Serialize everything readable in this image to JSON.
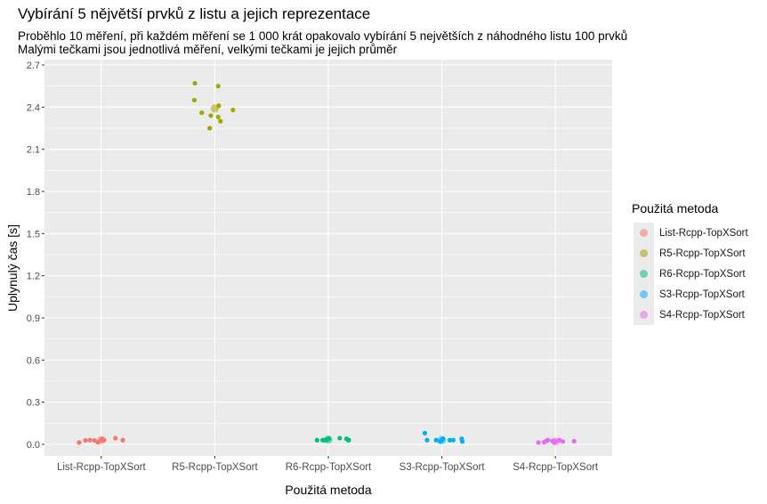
{
  "title": "Vybírání 5 nějvětší prvků z listu a jejich reprezentace",
  "subtitle_line1": "Proběhlo 10 měření, při každém měření se 1 000 krát opakovalo vybírání 5 největších z náhodného listu 100 prvků",
  "subtitle_line2": "Malými tečkami jsou jednotlivá měření, velkými tečkami je jejich průměr",
  "legend": {
    "title": "Použitá metoda",
    "items": [
      {
        "label": "List-Rcpp-TopXSort",
        "color": "#F8766D"
      },
      {
        "label": "R5-Rcpp-TopXSort",
        "color": "#A3A500"
      },
      {
        "label": "R6-Rcpp-TopXSort",
        "color": "#00BF7D"
      },
      {
        "label": "S3-Rcpp-TopXSort",
        "color": "#00B0F6"
      },
      {
        "label": "S4-Rcpp-TopXSort",
        "color": "#E76BF3"
      }
    ]
  },
  "chart_data": {
    "type": "scatter",
    "xlabel": "Použitá metoda",
    "ylabel": "Uplynulý čas [s]",
    "categories": [
      "List-Rcpp-TopXSort",
      "R5-Rcpp-TopXSort",
      "R6-Rcpp-TopXSort",
      "S3-Rcpp-TopXSort",
      "S4-Rcpp-TopXSort"
    ],
    "yticks": [
      "0.0",
      "0.3",
      "0.6",
      "0.9",
      "1.2",
      "1.5",
      "1.8",
      "2.1",
      "2.4",
      "2.7"
    ],
    "ylim": [
      -0.1,
      2.75
    ],
    "grid": true,
    "legend_position": "right",
    "series": [
      {
        "name": "List-Rcpp-TopXSort",
        "color": "#F8766D",
        "points": [
          {
            "jitter": -0.39,
            "y": 0.013
          },
          {
            "jitter": -0.28,
            "y": 0.028
          },
          {
            "jitter": -0.2,
            "y": 0.03
          },
          {
            "jitter": -0.12,
            "y": 0.028
          },
          {
            "jitter": -0.06,
            "y": 0.015
          },
          {
            "jitter": 0.0,
            "y": 0.03
          },
          {
            "jitter": 0.05,
            "y": 0.03
          },
          {
            "jitter": 0.25,
            "y": 0.044
          },
          {
            "jitter": 0.38,
            "y": 0.03
          },
          {
            "jitter": 0.02,
            "y": 0.038
          }
        ],
        "mean": 0.03
      },
      {
        "name": "R5-Rcpp-TopXSort",
        "color": "#A3A500",
        "points": [
          {
            "jitter": -0.35,
            "y": 2.57
          },
          {
            "jitter": -0.36,
            "y": 2.45
          },
          {
            "jitter": -0.23,
            "y": 2.36
          },
          {
            "jitter": -0.09,
            "y": 2.25
          },
          {
            "jitter": -0.07,
            "y": 2.34
          },
          {
            "jitter": 0.06,
            "y": 2.33
          },
          {
            "jitter": 0.06,
            "y": 2.55
          },
          {
            "jitter": 0.07,
            "y": 2.41
          },
          {
            "jitter": 0.1,
            "y": 2.3
          },
          {
            "jitter": 0.32,
            "y": 2.38
          }
        ],
        "mean": 2.39
      },
      {
        "name": "R6-Rcpp-TopXSort",
        "color": "#00BF7D",
        "points": [
          {
            "jitter": -0.2,
            "y": 0.03
          },
          {
            "jitter": -0.1,
            "y": 0.03
          },
          {
            "jitter": -0.08,
            "y": 0.03
          },
          {
            "jitter": -0.04,
            "y": 0.03
          },
          {
            "jitter": -0.02,
            "y": 0.035
          },
          {
            "jitter": 0.01,
            "y": 0.04
          },
          {
            "jitter": 0.2,
            "y": 0.044
          },
          {
            "jitter": 0.32,
            "y": 0.04
          },
          {
            "jitter": 0.35,
            "y": 0.03
          },
          {
            "jitter": 0.36,
            "y": 0.03
          }
        ],
        "mean": 0.035
      },
      {
        "name": "S3-Rcpp-TopXSort",
        "color": "#00B0F6",
        "points": [
          {
            "jitter": -0.3,
            "y": 0.08
          },
          {
            "jitter": -0.26,
            "y": 0.03
          },
          {
            "jitter": -0.1,
            "y": 0.03
          },
          {
            "jitter": -0.03,
            "y": 0.02
          },
          {
            "jitter": 0.0,
            "y": 0.03
          },
          {
            "jitter": 0.02,
            "y": 0.04
          },
          {
            "jitter": 0.14,
            "y": 0.03
          },
          {
            "jitter": 0.2,
            "y": 0.03
          },
          {
            "jitter": 0.35,
            "y": 0.04
          },
          {
            "jitter": 0.36,
            "y": 0.02
          }
        ],
        "mean": 0.03
      },
      {
        "name": "S4-Rcpp-TopXSort",
        "color": "#E76BF3",
        "points": [
          {
            "jitter": -0.3,
            "y": 0.013
          },
          {
            "jitter": -0.2,
            "y": 0.015
          },
          {
            "jitter": -0.16,
            "y": 0.025
          },
          {
            "jitter": -0.13,
            "y": 0.03
          },
          {
            "jitter": -0.05,
            "y": 0.025
          },
          {
            "jitter": -0.03,
            "y": 0.015
          },
          {
            "jitter": 0.0,
            "y": 0.02
          },
          {
            "jitter": 0.07,
            "y": 0.03
          },
          {
            "jitter": 0.13,
            "y": 0.02
          },
          {
            "jitter": 0.33,
            "y": 0.022
          }
        ],
        "mean": 0.02
      }
    ]
  }
}
